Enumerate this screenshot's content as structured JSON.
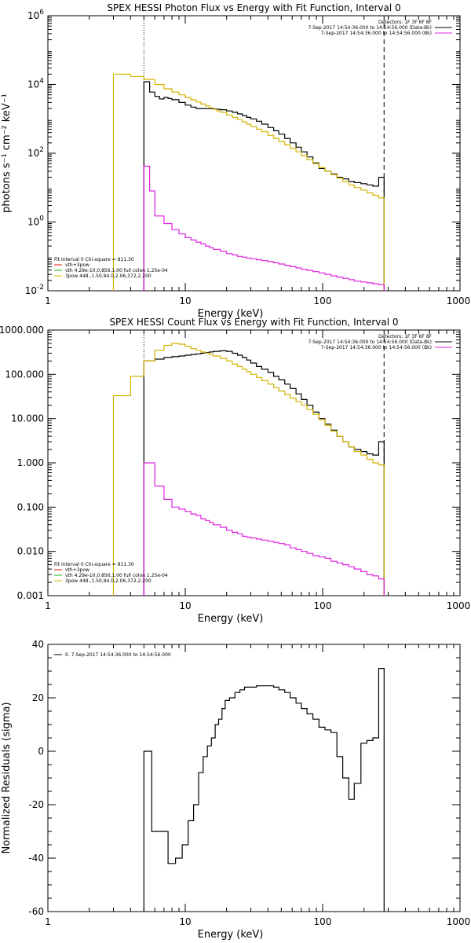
{
  "colors": {
    "data": "#000000",
    "total": "#d4b400",
    "component_vth": "#e020e0",
    "legend_red": "#e01010",
    "legend_green": "#10b010",
    "legend_yellow": "#d4b400"
  },
  "chart_data": [
    {
      "type": "line",
      "title": "SPEX HESSI Photon Flux vs Energy with Fit Function, Interval 0",
      "xlabel": "Energy (keV)",
      "ylabel": "photons s⁻¹ cm⁻² keV⁻¹",
      "xscale": "log",
      "yscale": "log",
      "xlim": [
        1,
        1000
      ],
      "ylim": [
        0.01,
        1000000
      ],
      "x_ticks": [
        {
          "v": 1,
          "t": "1"
        },
        {
          "v": 10,
          "t": "10"
        },
        {
          "v": 100,
          "t": "100"
        },
        {
          "v": 1000,
          "t": "1000"
        }
      ],
      "y_ticks": [
        {
          "v": 0.01,
          "base": "10",
          "exp": "-2"
        },
        {
          "v": 1,
          "base": "10",
          "exp": "0"
        },
        {
          "v": 100,
          "base": "10",
          "exp": "2"
        },
        {
          "v": 10000,
          "base": "10",
          "exp": "4"
        },
        {
          "v": 1000000,
          "base": "10",
          "exp": "6"
        }
      ],
      "vlines": [
        {
          "x": 5,
          "style": "dotted"
        },
        {
          "x": 280,
          "style": "dashed"
        }
      ],
      "legend_top_right": [
        {
          "text": "Detectors: 1F 3F 6F 8F",
          "color": "#000000",
          "line": false
        },
        {
          "text": "7-Sep-2017 14:54:36.000 to 14:54:56.000 (Data-Bk)",
          "color": "#000000",
          "line": true
        },
        {
          "text": "7-Sep-2017 14:54:36.000 to 14:54:56.000 (Bk)",
          "color": "#e020e0",
          "line": true
        }
      ],
      "legend_bottom_left": [
        {
          "text": "Fit Interval  0    Chi-square = 811.30",
          "color": "#000000",
          "line": false
        },
        {
          "text": "vth+3pow",
          "color": "#e01010",
          "line": true
        },
        {
          "text": "vth 4.29e-10,0.856,1.00  full colon 1.25e-04",
          "color": "#10b010",
          "line": true
        },
        {
          "text": "3pow 448.,1.50,94.0,2.06,372,2.200",
          "color": "#d4b400",
          "line": true
        }
      ],
      "series": [
        {
          "color": "#000000",
          "x": [
            5,
            5.5,
            6,
            6.5,
            7,
            7.5,
            8,
            9,
            10,
            11,
            12,
            13,
            14,
            15,
            16,
            17,
            18,
            20,
            22,
            24,
            26,
            28,
            30,
            33,
            36,
            40,
            44,
            48,
            53,
            58,
            64,
            70,
            77,
            85,
            94,
            104,
            115,
            127,
            140,
            155,
            170,
            190,
            210,
            232,
            256,
            280
          ],
          "y": [
            12000,
            6000,
            4500,
            3800,
            4200,
            3900,
            3600,
            3000,
            2500,
            2200,
            2000,
            2000,
            2000,
            2000,
            1950,
            1900,
            1850,
            1700,
            1550,
            1400,
            1250,
            1100,
            1000,
            850,
            700,
            560,
            450,
            360,
            270,
            200,
            150,
            110,
            78,
            52,
            36,
            30,
            25,
            20,
            18,
            15,
            14,
            13,
            12,
            11,
            20,
            20
          ]
        },
        {
          "color": "#d4b400",
          "x": [
            3,
            4,
            5,
            6,
            7,
            8,
            9,
            10,
            11,
            12,
            13,
            14,
            15,
            16,
            17,
            18,
            20,
            22,
            24,
            26,
            28,
            30,
            33,
            36,
            40,
            44,
            48,
            53,
            58,
            64,
            70,
            77,
            85,
            94,
            104,
            115,
            127,
            140,
            155,
            170,
            190,
            210,
            232,
            256,
            280
          ],
          "y": [
            20000,
            17000,
            14000,
            10000,
            7500,
            6000,
            5000,
            4200,
            3600,
            3100,
            2700,
            2400,
            2100,
            1900,
            1700,
            1550,
            1300,
            1100,
            950,
            820,
            700,
            600,
            500,
            420,
            330,
            270,
            220,
            175,
            140,
            110,
            85,
            65,
            50,
            38,
            30,
            24,
            19,
            15,
            12,
            10,
            8.5,
            7,
            6,
            5,
            5
          ]
        },
        {
          "color": "#e020e0",
          "x": [
            5,
            5.5,
            6,
            7,
            8,
            9,
            10,
            11,
            12,
            13,
            14,
            15,
            16,
            18,
            20,
            22,
            24,
            26,
            28,
            30,
            33,
            36,
            40,
            44,
            48,
            53,
            58,
            64,
            70,
            77,
            85,
            94,
            104,
            115,
            127,
            140,
            155,
            170,
            190,
            210,
            232,
            256,
            280
          ],
          "y": [
            42,
            8,
            1.5,
            0.9,
            0.6,
            0.45,
            0.35,
            0.3,
            0.26,
            0.23,
            0.2,
            0.18,
            0.16,
            0.14,
            0.12,
            0.11,
            0.1,
            0.095,
            0.09,
            0.085,
            0.08,
            0.075,
            0.07,
            0.065,
            0.06,
            0.055,
            0.05,
            0.046,
            0.042,
            0.039,
            0.036,
            0.033,
            0.03,
            0.027,
            0.025,
            0.023,
            0.021,
            0.019,
            0.018,
            0.017,
            0.016,
            0.015,
            0.015
          ]
        }
      ]
    },
    {
      "type": "line",
      "title": "SPEX HESSI Count Flux vs Energy with Fit Function, Interval 0",
      "xlabel": "Energy (keV)",
      "ylabel": "",
      "xscale": "log",
      "yscale": "log",
      "xlim": [
        1,
        1000
      ],
      "ylim": [
        0.001,
        1000
      ],
      "x_ticks": [
        {
          "v": 1,
          "t": "1"
        },
        {
          "v": 10,
          "t": "10"
        },
        {
          "v": 100,
          "t": "100"
        },
        {
          "v": 1000,
          "t": "1000"
        }
      ],
      "y_ticks": [
        {
          "v": 0.001,
          "t": "0.001"
        },
        {
          "v": 0.01,
          "t": "0.010"
        },
        {
          "v": 0.1,
          "t": "0.100"
        },
        {
          "v": 1,
          "t": "1.000"
        },
        {
          "v": 10,
          "t": "10.000"
        },
        {
          "v": 100,
          "t": "100.000"
        },
        {
          "v": 1000,
          "t": "1000.000"
        }
      ],
      "vlines": [
        {
          "x": 5,
          "style": "dotted"
        },
        {
          "x": 280,
          "style": "dashed"
        }
      ],
      "legend_top_right": [
        {
          "text": "Detectors: 1F 3F 6F 8F",
          "color": "#000000",
          "line": false
        },
        {
          "text": "7-Sep-2017 14:54:36.000 to 14:54:56.000 (Data-Bk)",
          "color": "#000000",
          "line": true
        },
        {
          "text": "7-Sep-2017 14:54:36.000 to 14:54:56.000 (Bk)",
          "color": "#e020e0",
          "line": true
        }
      ],
      "legend_bottom_left": [
        {
          "text": "Fit Interval  0    Chi-square = 811.30",
          "color": "#000000",
          "line": false
        },
        {
          "text": "vth+3pow",
          "color": "#e01010",
          "line": true
        },
        {
          "text": "vth 4.29e-10,0.856,1.00  full colon 1.25e-04",
          "color": "#10b010",
          "line": true
        },
        {
          "text": "3pow 448.,1.50,94.0,2.06,372,2.200",
          "color": "#d4b400",
          "line": true
        }
      ],
      "series": [
        {
          "color": "#000000",
          "x": [
            5,
            6,
            7,
            8,
            9,
            10,
            11,
            12,
            13,
            14,
            15,
            16,
            17,
            18,
            19,
            20,
            22,
            24,
            26,
            28,
            30,
            33,
            36,
            40,
            44,
            48,
            53,
            58,
            64,
            70,
            77,
            85,
            94,
            104,
            115,
            127,
            140,
            155,
            170,
            190,
            210,
            232,
            256,
            280
          ],
          "y": [
            200,
            220,
            240,
            250,
            260,
            270,
            280,
            290,
            300,
            310,
            320,
            330,
            330,
            340,
            340,
            330,
            300,
            270,
            240,
            210,
            180,
            150,
            130,
            110,
            90,
            75,
            60,
            48,
            36,
            27,
            20,
            14,
            10,
            7.5,
            5.5,
            4,
            3,
            2.3,
            2,
            1.8,
            1.6,
            1.5,
            3,
            3
          ]
        },
        {
          "color": "#d4b400",
          "x": [
            3,
            4,
            5,
            6,
            7,
            8,
            9,
            10,
            11,
            12,
            13,
            14,
            15,
            16,
            18,
            20,
            22,
            24,
            26,
            28,
            30,
            33,
            36,
            40,
            44,
            48,
            53,
            58,
            64,
            70,
            77,
            85,
            94,
            104,
            115,
            127,
            140,
            155,
            170,
            190,
            210,
            232,
            256,
            280
          ],
          "y": [
            33,
            90,
            200,
            350,
            450,
            500,
            480,
            430,
            380,
            350,
            320,
            300,
            280,
            260,
            230,
            200,
            170,
            150,
            130,
            115,
            100,
            85,
            72,
            60,
            50,
            42,
            35,
            29,
            24,
            20,
            16,
            12.5,
            9.5,
            7,
            5.2,
            4,
            3,
            2.3,
            1.8,
            1.5,
            1.2,
            1,
            0.9,
            0.9
          ]
        },
        {
          "color": "#e020e0",
          "x": [
            5,
            6,
            7,
            8,
            9,
            10,
            11,
            12,
            13,
            14,
            15,
            16,
            18,
            20,
            22,
            24,
            26,
            28,
            30,
            33,
            36,
            40,
            44,
            48,
            53,
            58,
            64,
            70,
            77,
            85,
            94,
            104,
            115,
            127,
            140,
            155,
            170,
            190,
            210,
            232,
            256,
            280
          ],
          "y": [
            1,
            0.3,
            0.15,
            0.1,
            0.09,
            0.08,
            0.07,
            0.065,
            0.055,
            0.05,
            0.045,
            0.04,
            0.035,
            0.03,
            0.027,
            0.025,
            0.022,
            0.021,
            0.02,
            0.019,
            0.018,
            0.017,
            0.016,
            0.015,
            0.014,
            0.012,
            0.011,
            0.01,
            0.009,
            0.008,
            0.0075,
            0.007,
            0.006,
            0.0055,
            0.005,
            0.0045,
            0.004,
            0.0035,
            0.003,
            0.0028,
            0.0024,
            0.0024
          ]
        }
      ]
    },
    {
      "type": "line",
      "title": "",
      "xlabel": "Energy (keV)",
      "ylabel": "Normalized Residuals (sigma)",
      "xscale": "log",
      "yscale": "linear",
      "xlim": [
        1,
        1000
      ],
      "ylim": [
        -60,
        40
      ],
      "x_ticks": [
        {
          "v": 1,
          "t": "1"
        },
        {
          "v": 10,
          "t": "10"
        },
        {
          "v": 100,
          "t": "100"
        },
        {
          "v": 1000,
          "t": "1000"
        }
      ],
      "y_ticks": [
        {
          "v": -60,
          "t": "-60"
        },
        {
          "v": -40,
          "t": "-40"
        },
        {
          "v": -20,
          "t": "-20"
        },
        {
          "v": 0,
          "t": "0"
        },
        {
          "v": 20,
          "t": "20"
        },
        {
          "v": 40,
          "t": "40"
        }
      ],
      "vlines": [],
      "legend_top_left": [
        {
          "text": "0.  7-Sep-2017 14:54:36.000 to 14:54:56.000",
          "color": "#000000",
          "line": true
        }
      ],
      "series": [
        {
          "color": "#000000",
          "x": [
            5,
            5.7,
            6.5,
            7.5,
            8.5,
            9.5,
            10.5,
            11.5,
            12.5,
            13.5,
            14.5,
            15.5,
            16.5,
            17.5,
            18.5,
            19.5,
            21,
            23,
            25,
            27,
            29,
            31,
            33,
            36,
            40,
            44,
            48,
            53,
            58,
            64,
            70,
            77,
            85,
            94,
            104,
            115,
            127,
            140,
            155,
            170,
            190,
            210,
            232,
            256,
            280
          ],
          "y": [
            0,
            -30,
            -30,
            -42,
            -40,
            -35,
            -26,
            -20,
            -8,
            -2,
            2,
            5,
            10,
            12,
            16,
            19,
            20,
            22,
            23,
            24,
            24,
            24,
            24.5,
            24.5,
            24.5,
            24,
            23,
            22,
            20,
            18,
            16,
            14,
            12,
            9,
            8,
            7,
            -2,
            -10,
            -18,
            -12,
            3,
            4,
            5,
            31,
            -60
          ]
        }
      ]
    }
  ]
}
